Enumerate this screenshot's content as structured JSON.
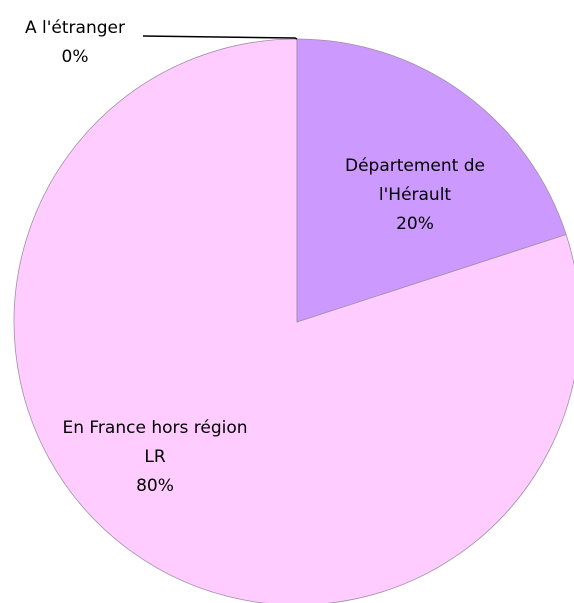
{
  "chart_data": {
    "type": "pie",
    "categories": [
      "Département de l'Hérault",
      "En France hors région LR",
      "A l'étranger"
    ],
    "values": [
      20,
      80,
      0
    ],
    "value_labels": [
      "20%",
      "80%",
      "0%"
    ],
    "colors": [
      "#cc99ff",
      "#ffccff",
      "#99ccff"
    ]
  }
}
